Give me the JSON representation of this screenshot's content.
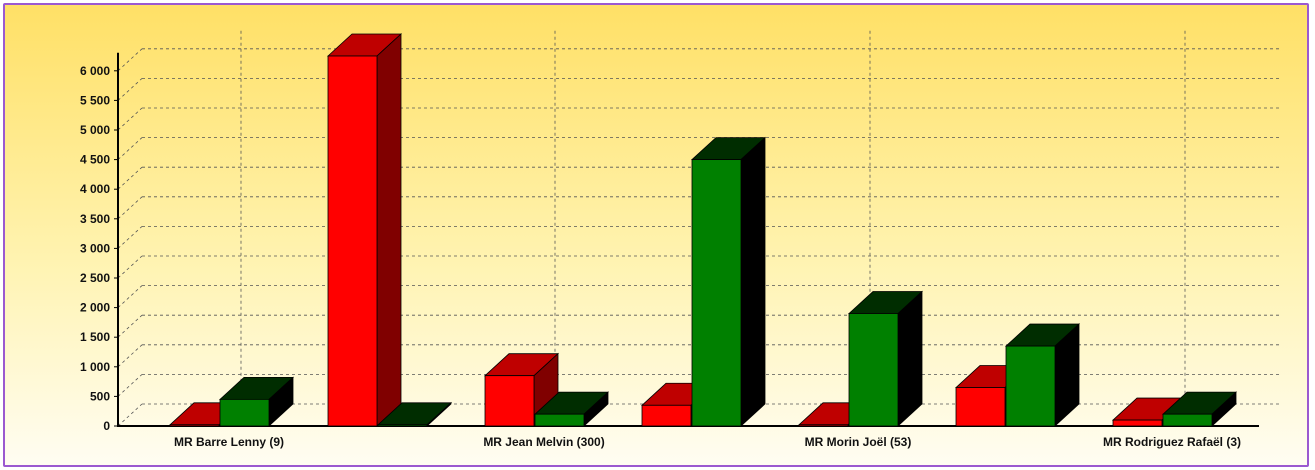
{
  "chart_data": {
    "type": "bar",
    "three_d": true,
    "categories": [
      "MR Barre Lenny (9)",
      "",
      "MR Jean Melvin (300)",
      "",
      "MR Morin Joël (53)",
      "",
      "MR Rodriguez Rafaël (3)"
    ],
    "series": [
      {
        "values": [
          20,
          6250,
          850,
          350,
          20,
          650,
          100
        ],
        "color": "#ff0000"
      },
      {
        "values": [
          450,
          20,
          200,
          4500,
          1900,
          1350,
          200
        ],
        "color": "#008000"
      }
    ],
    "y_ticks": [
      "0",
      "500",
      "1 000",
      "1 500",
      "2 000",
      "2 500",
      "3 000",
      "3 500",
      "4 000",
      "4 500",
      "5 000",
      "5 500",
      "6 000"
    ],
    "ylim": [
      0,
      6000
    ],
    "grid": true,
    "legend": "none",
    "colors": {
      "frame_border": "#9b59d0",
      "background_top": "#ffe066",
      "background_bottom": "#fffdf2"
    }
  }
}
